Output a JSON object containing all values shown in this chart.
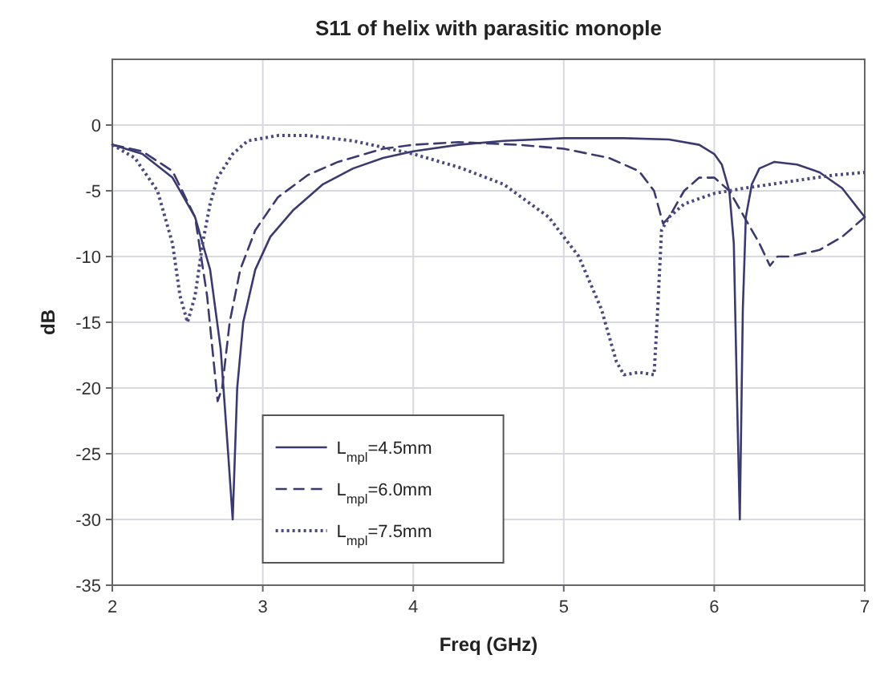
{
  "chart_data": {
    "type": "line",
    "title": "S11 of helix with parasitic monople",
    "xlabel": "Freq (GHz)",
    "ylabel": "dB",
    "xlim": [
      2,
      7
    ],
    "xticks": [
      2,
      3,
      4,
      5,
      6,
      7
    ],
    "ylim": [
      -35,
      5
    ],
    "yticks": [
      0,
      -5,
      -10,
      -15,
      -20,
      -25,
      -30,
      -35
    ],
    "grid": true,
    "legend": "bottom left",
    "series": [
      {
        "name": "L$_{mpl}$=4.5mm",
        "color": "#3a3a6e",
        "line_style": "solid",
        "x": [
          2,
          2.2,
          2.4,
          2.55,
          2.65,
          2.72,
          2.77,
          2.8,
          2.83,
          2.87,
          2.95,
          3.05,
          3.2,
          3.4,
          3.6,
          3.8,
          4,
          4.3,
          4.6,
          5,
          5.4,
          5.7,
          5.9,
          6,
          6.05,
          6.1,
          6.13,
          6.15,
          6.17,
          6.19,
          6.21,
          6.25,
          6.3,
          6.4,
          6.55,
          6.7,
          6.85,
          7
        ],
        "values": [
          -1.5,
          -2.2,
          -4,
          -7,
          -11,
          -17,
          -25,
          -30,
          -20,
          -15,
          -11,
          -8.5,
          -6.5,
          -4.5,
          -3.3,
          -2.5,
          -2,
          -1.5,
          -1.2,
          -1,
          -1,
          -1.1,
          -1.5,
          -2.2,
          -3,
          -5,
          -9,
          -20,
          -30,
          -14,
          -7,
          -4.5,
          -3.3,
          -2.8,
          -3,
          -3.6,
          -4.8,
          -7
        ]
      },
      {
        "name": "L$_{mpl}$=6.0mm",
        "color": "#3a3a6e",
        "line_style": "dashed",
        "x": [
          2,
          2.2,
          2.4,
          2.55,
          2.63,
          2.7,
          2.73,
          2.78,
          2.85,
          2.95,
          3.1,
          3.3,
          3.5,
          3.8,
          4,
          4.3,
          4.7,
          5,
          5.3,
          5.5,
          5.6,
          5.66,
          5.7,
          5.8,
          5.9,
          6,
          6.1,
          6.2,
          6.3,
          6.37,
          6.42,
          6.5,
          6.7,
          6.85,
          7
        ],
        "values": [
          -1.5,
          -2,
          -3.5,
          -7,
          -13,
          -21,
          -20,
          -15,
          -11,
          -8,
          -5.5,
          -3.8,
          -2.8,
          -1.8,
          -1.5,
          -1.3,
          -1.5,
          -1.8,
          -2.5,
          -3.5,
          -5,
          -7.5,
          -7,
          -5,
          -4,
          -4,
          -5,
          -7,
          -9,
          -10.7,
          -10,
          -10,
          -9.5,
          -8.5,
          -7
        ]
      },
      {
        "name": "L$_{mpl}$=7.5mm",
        "color": "#4a4a7e",
        "line_style": "dotted",
        "x": [
          2,
          2.15,
          2.3,
          2.4,
          2.45,
          2.5,
          2.55,
          2.6,
          2.65,
          2.7,
          2.8,
          2.9,
          3.1,
          3.3,
          3.6,
          4,
          4.3,
          4.6,
          4.9,
          5.1,
          5.25,
          5.35,
          5.4,
          5.5,
          5.6,
          5.62,
          5.65,
          5.7,
          5.8,
          6,
          6.2,
          6.5,
          6.8,
          7
        ],
        "values": [
          -1.5,
          -2.5,
          -5,
          -9,
          -13,
          -15,
          -13,
          -9,
          -6,
          -4,
          -2.2,
          -1.2,
          -0.8,
          -0.8,
          -1.2,
          -2.2,
          -3.2,
          -4.5,
          -7,
          -10,
          -14,
          -18,
          -19,
          -18.8,
          -19,
          -15,
          -8,
          -7,
          -6,
          -5.2,
          -4.8,
          -4.3,
          -3.8,
          -3.6
        ]
      }
    ]
  }
}
